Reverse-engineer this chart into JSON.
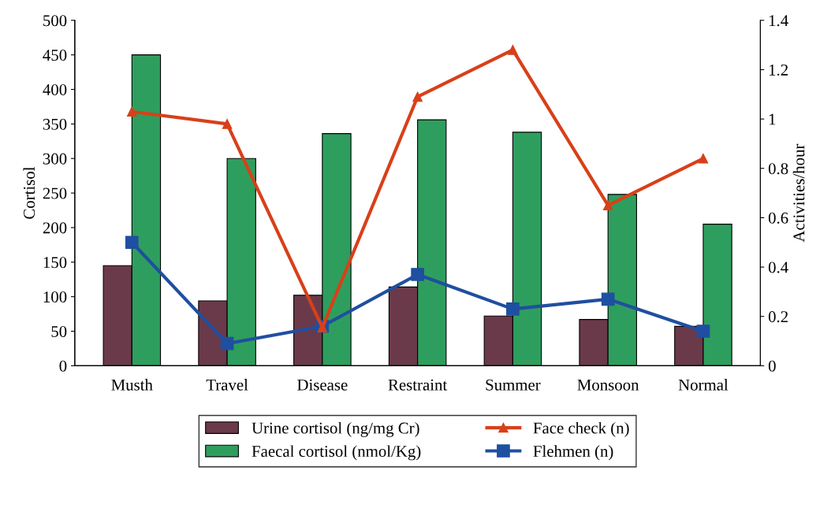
{
  "chart_data": {
    "type": "bar",
    "ylabel": "Cortisol",
    "y2label": "Activities/hour",
    "categories": [
      "Musth",
      "Travel",
      "Disease",
      "Restraint",
      "Summer",
      "Monsoon",
      "Normal"
    ],
    "series": [
      {
        "name": "Urine cortisol (ng/mg Cr)",
        "color": "#6b3a4a",
        "values": [
          145,
          94,
          102,
          114,
          72,
          67,
          57
        ]
      },
      {
        "name": "Faecal cortisol (nmol/Kg)",
        "color": "#2e9e5e",
        "values": [
          450,
          300,
          336,
          356,
          338,
          248,
          205
        ]
      },
      {
        "name": "Face check (n)",
        "type": "line",
        "axis": "y2",
        "marker": "triangle",
        "color": "#d8401a",
        "values": [
          1.03,
          0.98,
          0.155,
          1.09,
          1.28,
          0.65,
          0.84
        ]
      },
      {
        "name": "Flehmen (n)",
        "type": "line",
        "axis": "y2",
        "marker": "square",
        "color": "#1f4fa0",
        "values": [
          0.5,
          0.09,
          0.16,
          0.37,
          0.23,
          0.27,
          0.14
        ]
      }
    ],
    "ylim": [
      0,
      500
    ],
    "yticks": [
      0,
      50,
      100,
      150,
      200,
      250,
      300,
      350,
      400,
      450,
      500
    ],
    "y2lim": [
      0,
      1.4
    ],
    "y2ticks": [
      0,
      0.2,
      0.4,
      0.6,
      0.8,
      1,
      1.2,
      1.4
    ],
    "grid": false,
    "legend": "bottom"
  }
}
